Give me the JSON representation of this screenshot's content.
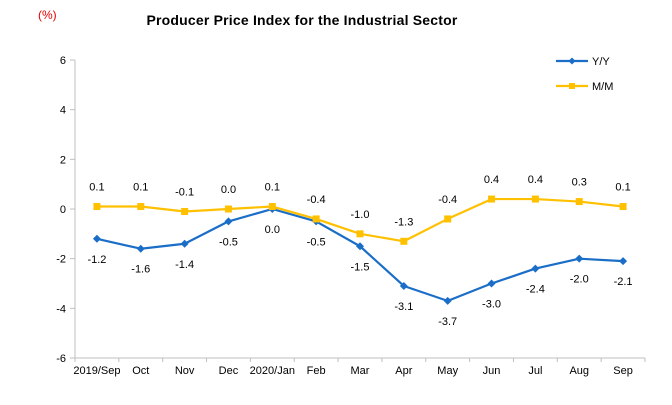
{
  "chart_data": {
    "type": "line",
    "title": "Producer Price Index for the Industrial Sector",
    "unit_label": "(%)",
    "unit_label_color": "#e60000",
    "title_color": "#000000",
    "categories": [
      "2019/Sep",
      "Oct",
      "Nov",
      "Dec",
      "2020/Jan",
      "Feb",
      "Mar",
      "Apr",
      "May",
      "Jun",
      "Jul",
      "Aug",
      "Sep"
    ],
    "series": [
      {
        "name": "Y/Y",
        "color": "#1b6ec8",
        "marker": "diamond",
        "label_position": "below",
        "values": [
          -1.2,
          -1.6,
          -1.4,
          -0.5,
          0.0,
          -0.5,
          -1.5,
          -3.1,
          -3.7,
          -3.0,
          -2.4,
          -2.0,
          -2.1
        ]
      },
      {
        "name": "M/M",
        "color": "#ffc000",
        "marker": "square",
        "label_position": "above",
        "values": [
          0.1,
          0.1,
          -0.1,
          0.0,
          0.1,
          -0.4,
          -1.0,
          -1.3,
          -0.4,
          0.4,
          0.4,
          0.3,
          0.1
        ]
      }
    ],
    "ylim": [
      -6,
      6
    ],
    "yticks": [
      6,
      4,
      2,
      0,
      -2,
      -4,
      -6
    ],
    "grid": false,
    "legend_position": "top-right",
    "axis_color": "#bfbfbf",
    "tick_label_color": "#000000",
    "data_label_color": "#000000"
  }
}
